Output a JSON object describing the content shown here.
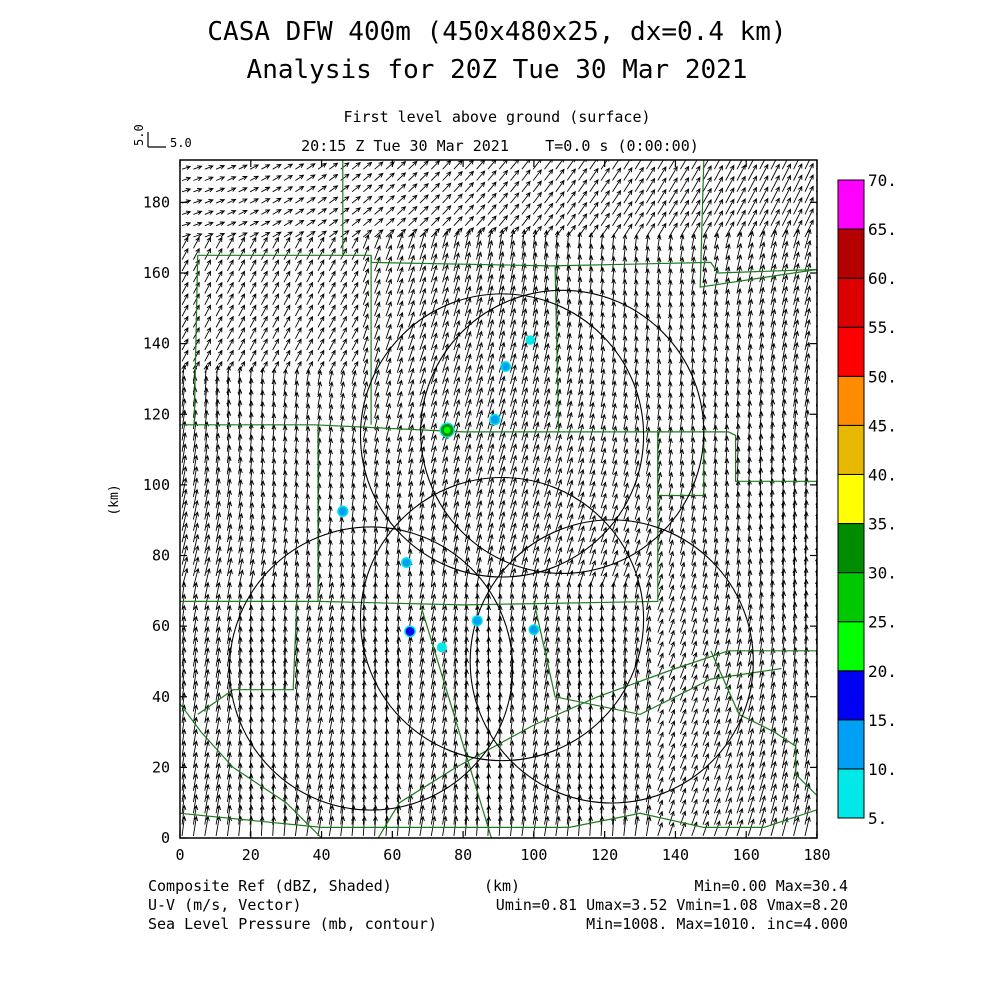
{
  "chart_data": {
    "type": "map-vector-field",
    "title": "CASA DFW 400m (450x480x25, dx=0.4 km)",
    "subtitle": "Analysis for 20Z Tue 30 Mar 2021",
    "level_label": "First level above ground (surface)",
    "time_label": "20:15 Z Tue 30 Mar 2021",
    "elapsed_label": "T=0.0 s (0:00:00)",
    "ref_vector": {
      "x_label": "5.0",
      "y_label": "5.0"
    },
    "xlabel": "(km)",
    "ylabel": "(km)",
    "xlim": [
      0,
      180
    ],
    "ylim": [
      0,
      192
    ],
    "x_ticks": [
      0,
      20,
      40,
      60,
      80,
      100,
      120,
      140,
      160,
      180
    ],
    "y_ticks": [
      0,
      20,
      40,
      60,
      80,
      100,
      120,
      140,
      160,
      180
    ],
    "colorbar": {
      "ticks": [
        "5.",
        "10.",
        "15.",
        "20.",
        "25.",
        "30.",
        "35.",
        "40.",
        "45.",
        "50.",
        "55.",
        "60.",
        "65.",
        "70."
      ],
      "colors": [
        "#00e8e8",
        "#00a0f5",
        "#0000f5",
        "#00ff00",
        "#00c800",
        "#008c00",
        "#ffff00",
        "#e6b800",
        "#ff8c00",
        "#ff0000",
        "#dc0000",
        "#b40000",
        "#ff00ff"
      ]
    },
    "footer_left": [
      "Composite Ref (dBZ, Shaded)",
      "U-V (m/s, Vector)",
      "Sea Level Pressure (mb, contour)"
    ],
    "footer_center": "(km)",
    "footer_right": [
      "Min=0.00 Max=30.4",
      "Umin=0.81 Umax=3.52 Vmin=1.08 Vmax=8.20",
      "Min=1008. Max=1010. inc=4.000"
    ],
    "wind_field": {
      "u_range": [
        0.81,
        3.52
      ],
      "v_range": [
        1.08,
        8.2
      ]
    },
    "radar_rings": [
      {
        "cx": 91,
        "cy": 114,
        "r": 40
      },
      {
        "cx": 54,
        "cy": 48,
        "r": 40
      },
      {
        "cx": 108,
        "cy": 115,
        "r": 40
      },
      {
        "cx": 91,
        "cy": 62,
        "r": 40
      },
      {
        "cx": 122,
        "cy": 50,
        "r": 40
      }
    ],
    "reflectivity_cells": [
      {
        "x": 75.5,
        "y": 115.5,
        "dbz": 30.4
      },
      {
        "x": 89,
        "y": 118.5,
        "dbz": 14
      },
      {
        "x": 92,
        "y": 133.5,
        "dbz": 12
      },
      {
        "x": 99,
        "y": 141,
        "dbz": 7
      },
      {
        "x": 46,
        "y": 92.5,
        "dbz": 14
      },
      {
        "x": 64,
        "y": 78,
        "dbz": 12
      },
      {
        "x": 65,
        "y": 58.5,
        "dbz": 16
      },
      {
        "x": 84,
        "y": 61.5,
        "dbz": 13
      },
      {
        "x": 100,
        "y": 59,
        "dbz": 12
      },
      {
        "x": 74,
        "y": 54,
        "dbz": 8
      }
    ],
    "county_boundaries": [
      [
        [
          0,
          117
        ],
        [
          38,
          117
        ],
        [
          80,
          115
        ],
        [
          155,
          115
        ],
        [
          157,
          114
        ],
        [
          157,
          101
        ],
        [
          180,
          101
        ]
      ],
      [
        [
          5,
          165
        ],
        [
          54,
          165
        ],
        [
          54,
          163
        ],
        [
          105,
          162
        ],
        [
          150,
          163
        ],
        [
          152,
          160
        ],
        [
          180,
          161
        ]
      ],
      [
        [
          5,
          165
        ],
        [
          4,
          117
        ]
      ],
      [
        [
          46,
          192
        ],
        [
          46,
          165
        ]
      ],
      [
        [
          54,
          165
        ],
        [
          54,
          117
        ]
      ],
      [
        [
          106,
          162
        ],
        [
          107,
          115
        ]
      ],
      [
        [
          148,
          192
        ],
        [
          147,
          156
        ],
        [
          180,
          161
        ]
      ],
      [
        [
          135,
          115
        ],
        [
          135,
          97
        ],
        [
          148,
          97
        ],
        [
          148,
          115
        ]
      ],
      [
        [
          0,
          67
        ],
        [
          39,
          67
        ],
        [
          39,
          117
        ]
      ],
      [
        [
          39,
          67
        ],
        [
          80,
          66
        ],
        [
          135,
          67
        ],
        [
          135,
          115
        ]
      ],
      [
        [
          33,
          67
        ],
        [
          32,
          42
        ],
        [
          15,
          42
        ],
        [
          5,
          35
        ]
      ],
      [
        [
          0,
          38
        ],
        [
          6,
          30
        ],
        [
          15,
          20
        ],
        [
          30,
          10
        ],
        [
          40,
          0
        ]
      ],
      [
        [
          56,
          0
        ],
        [
          62,
          10
        ],
        [
          78,
          20
        ],
        [
          100,
          32
        ],
        [
          118,
          40
        ],
        [
          140,
          48
        ],
        [
          155,
          53
        ],
        [
          180,
          53
        ]
      ],
      [
        [
          68,
          66
        ],
        [
          88,
          0
        ]
      ],
      [
        [
          100,
          67
        ],
        [
          106,
          40
        ],
        [
          130,
          35
        ],
        [
          150,
          45
        ],
        [
          170,
          48
        ]
      ],
      [
        [
          150,
          53
        ],
        [
          158,
          35
        ],
        [
          168,
          30
        ],
        [
          174,
          26
        ],
        [
          174,
          18
        ],
        [
          180,
          12
        ]
      ],
      [
        [
          0,
          7
        ],
        [
          40,
          3
        ],
        [
          70,
          3
        ],
        [
          110,
          3
        ],
        [
          130,
          7
        ],
        [
          148,
          3
        ],
        [
          165,
          3
        ],
        [
          180,
          8
        ]
      ]
    ]
  }
}
